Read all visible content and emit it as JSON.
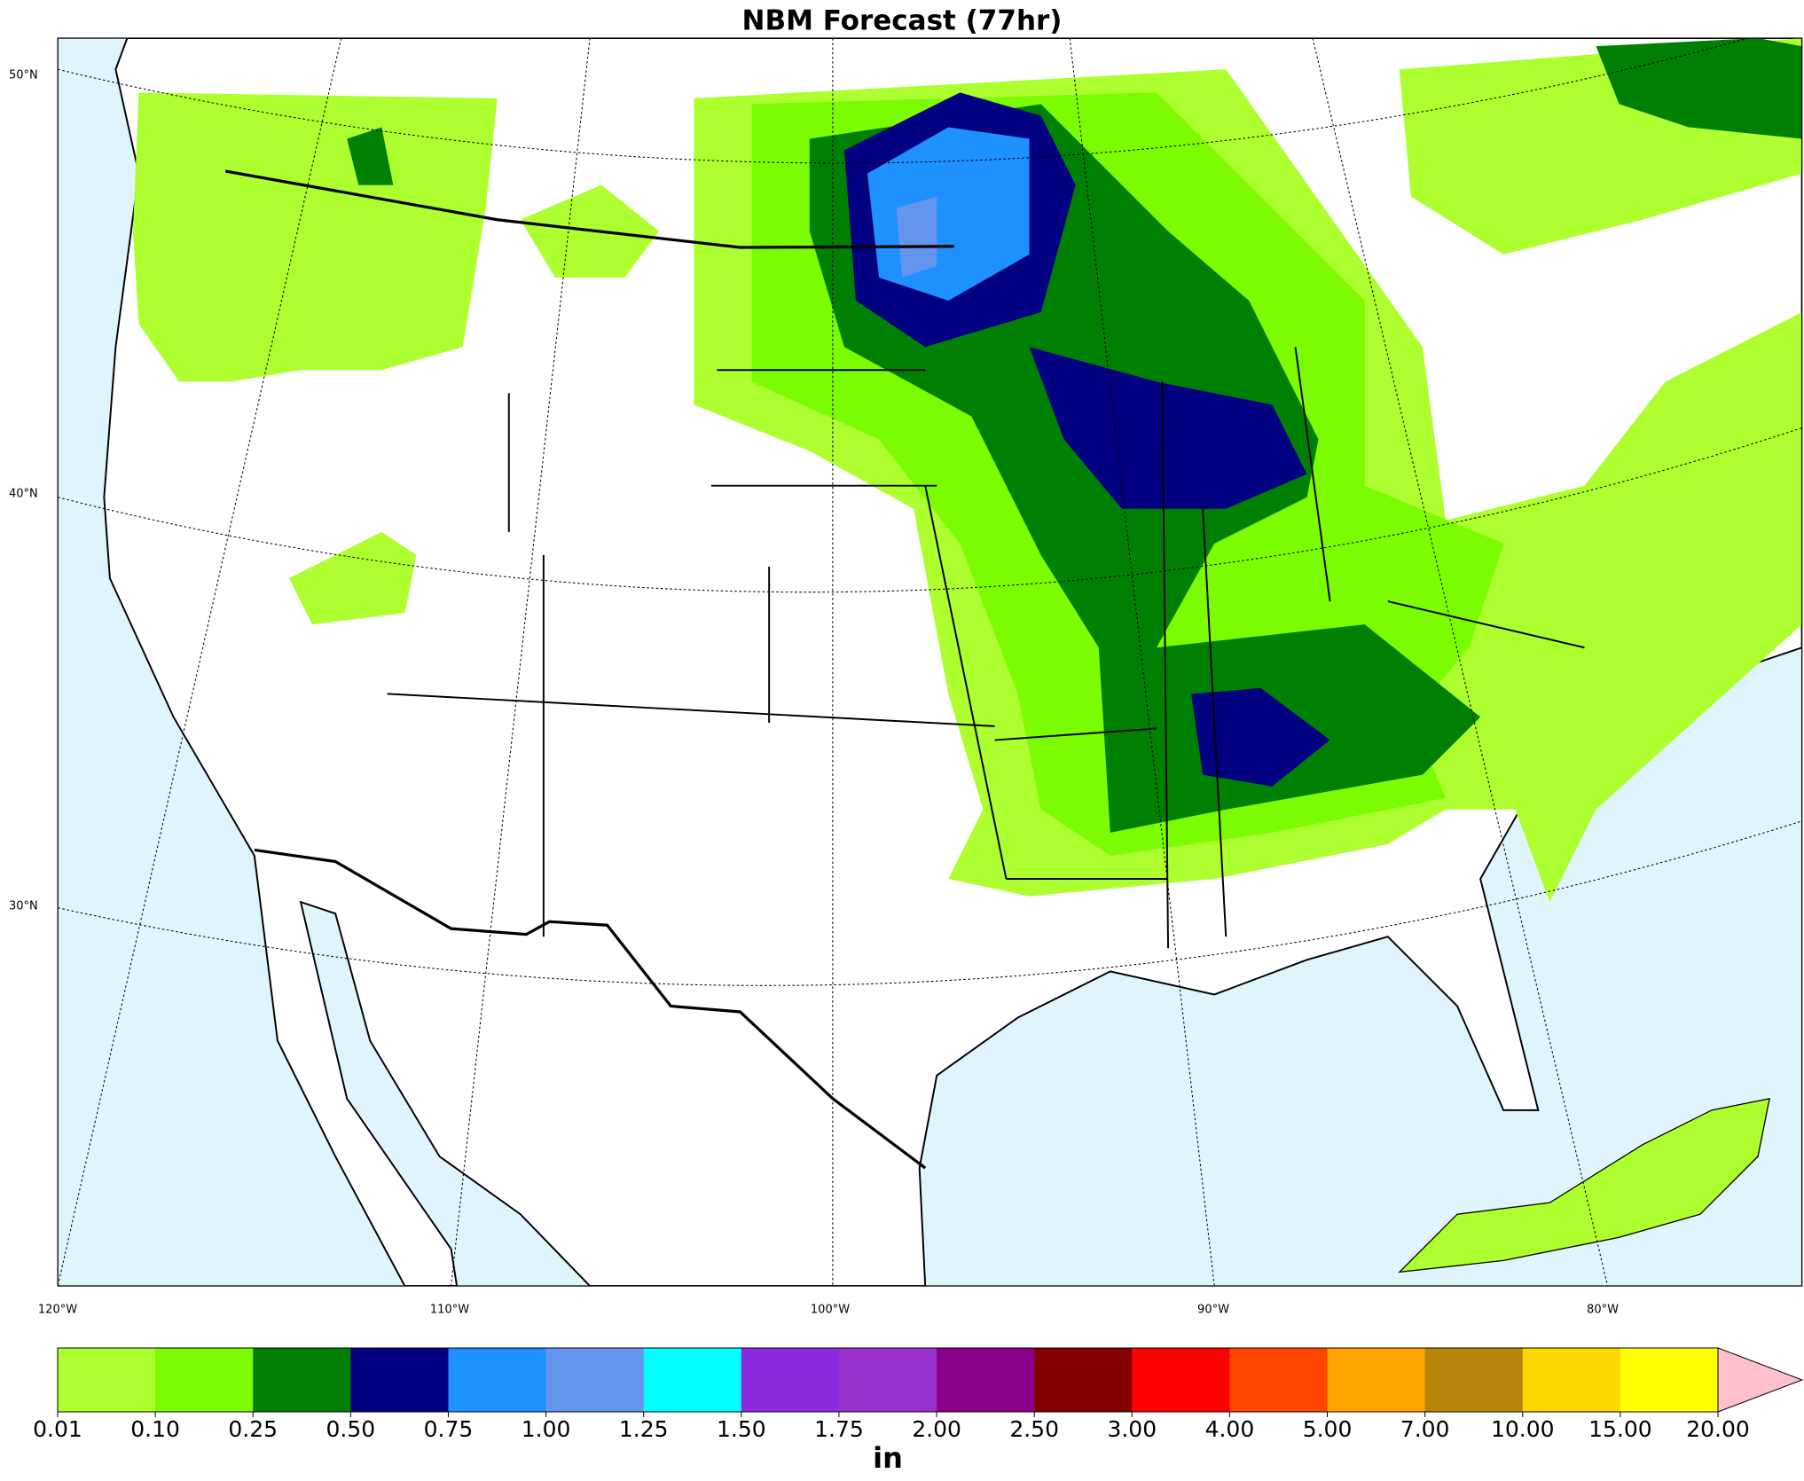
{
  "title": "NBM Forecast (77hr)",
  "lat_labels": [
    "50°N",
    "40°N",
    "30°N"
  ],
  "lon_labels": [
    "120°W",
    "110°W",
    "100°W",
    "90°W",
    "80°W"
  ],
  "colorbar": {
    "levels": [
      0.01,
      {
        "value": 0.1,
        "label": "0.10"
      },
      {
        "value": 0.25,
        "label": "0.25"
      },
      {
        "value": 0.5,
        "label": "0.50"
      },
      {
        "value": 0.75,
        "label": "0.75"
      },
      {
        "value": 1,
        "label": "1.00"
      },
      {
        "value": 1.25,
        "label": "1.25"
      },
      {
        "value": 1.5,
        "label": "1.50"
      },
      {
        "value": 1.75,
        "label": "1.75"
      },
      {
        "value": 2,
        "label": "2.00"
      },
      {
        "value": 2.5,
        "label": "2.50"
      },
      {
        "value": 3,
        "label": "3.00"
      },
      {
        "value": 4,
        "label": "4.00"
      },
      {
        "value": 5,
        "label": "5.00"
      },
      {
        "value": 7,
        "label": "7.00"
      },
      {
        "value": 10,
        "label": "10.00"
      },
      {
        "value": 15,
        "label": "15.00"
      },
      {
        "value": 20,
        "label": "20.00"
      }
    ],
    "colors": [
      "#adff2f",
      "#7cfc00",
      "#008000",
      "#000080",
      "#1e90ff",
      "#6495ed",
      "#00ffff",
      "#8a2be2",
      "#9932cc",
      "#8b008b",
      "#800000",
      "#ff0000",
      "#ff4500",
      "#ffa500",
      "#b8860b",
      "#ffd700",
      "#ffff00"
    ],
    "extend_color": "#ffc0cb",
    "unit": "in"
  }
}
